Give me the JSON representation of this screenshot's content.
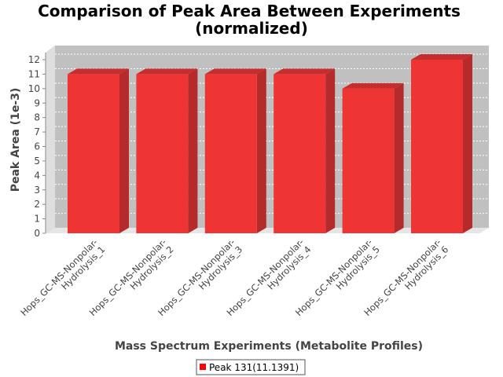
{
  "chart_data": {
    "type": "bar",
    "title_lines": [
      "Comparison of Peak Area Between Experiments",
      "(normalized)"
    ],
    "xlabel": "Mass Spectrum Experiments (Metabolite Profiles)",
    "ylabel": "Peak Area (1e-3)",
    "categories": [
      [
        "Hops_GC-MS-Nonpolar-",
        "Hydrolysis_1"
      ],
      [
        "Hops_GC-MS-Nonpolar-",
        "Hydrolysis_2"
      ],
      [
        "Hops_GC-MS-Nonpolar-",
        "Hydrolysis_3"
      ],
      [
        "Hops_GC-MS-Nonpolar-",
        "Hydrolysis_4"
      ],
      [
        "Hops_GC-MS-Nonpolar-",
        "Hydrolysis_5"
      ],
      [
        "Hops_GC-MS-Nonpolar-",
        "Hydrolysis_6"
      ]
    ],
    "series": [
      {
        "name": "Peak 131(11.1391)",
        "color": "#ff0000",
        "values": [
          11,
          11,
          11,
          11,
          10,
          12
        ]
      }
    ],
    "ylim": [
      0,
      12
    ],
    "yticks": [
      0,
      1,
      2,
      3,
      4,
      5,
      6,
      7,
      8,
      9,
      10,
      11,
      12
    ],
    "grid": true,
    "legend_position": "bottom",
    "style": "3d-bar"
  }
}
